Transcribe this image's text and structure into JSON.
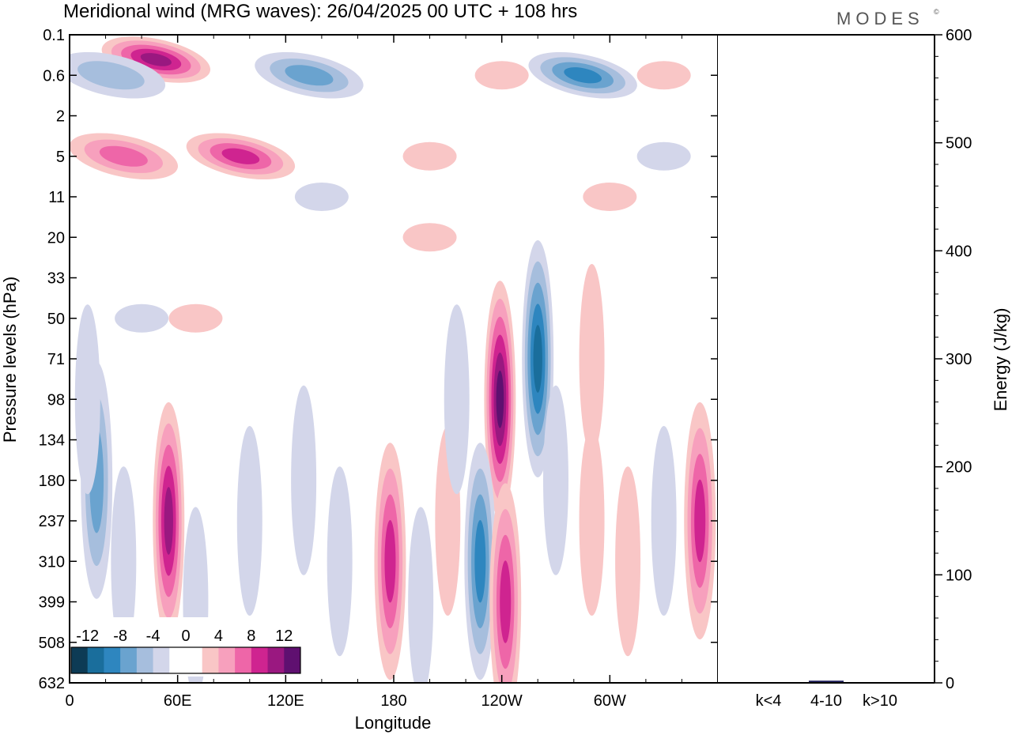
{
  "chart_data": [
    {
      "type": "heatmap",
      "title": "Meridional wind (MRG waves):  26/04/2025  00 UTC  + 108 hrs",
      "xlabel": "Longitude",
      "ylabel": "Pressure levels (hPa)",
      "x_ticks": [
        "0",
        "60E",
        "120E",
        "180",
        "120W",
        "60W"
      ],
      "x_tick_degrees": [
        0,
        60,
        120,
        180,
        240,
        300
      ],
      "x_range_degrees": [
        0,
        360
      ],
      "y_ticks": [
        "0.1",
        "0.6",
        "2",
        "5",
        "11",
        "20",
        "33",
        "50",
        "71",
        "98",
        "134",
        "180",
        "237",
        "310",
        "399",
        "508",
        "632"
      ],
      "y_axis_inverted": true,
      "colorbar": {
        "labels": [
          "-12",
          "-8",
          "-4",
          "0",
          "4",
          "8",
          "12"
        ],
        "colors": [
          "#0d3b55",
          "#1a6e9c",
          "#2e86bf",
          "#6aa3cf",
          "#a6bedd",
          "#d3d6ea",
          "#ffffff",
          "#ffffff",
          "#f9c6c6",
          "#f7a0bd",
          "#ee66a8",
          "#cf2490",
          "#9a1880",
          "#5f1070"
        ],
        "placement": "bottom-left"
      },
      "features": [
        {
          "lon": 48,
          "level": "0.3",
          "value": 11,
          "sign": "positive"
        },
        {
          "lon": 23,
          "level": "0.6",
          "value": -5,
          "sign": "negative"
        },
        {
          "lon": 133,
          "level": "0.6",
          "value": -7,
          "sign": "negative"
        },
        {
          "lon": 285,
          "level": "0.6",
          "value": -9,
          "sign": "negative"
        },
        {
          "lon": 95,
          "level": "5",
          "value": 8,
          "sign": "positive"
        },
        {
          "lon": 30,
          "level": "5",
          "value": 6,
          "sign": "positive"
        },
        {
          "lon": 260,
          "level": "71",
          "value": -10,
          "sign": "negative"
        },
        {
          "lon": 239,
          "level": "98",
          "value": 13,
          "sign": "positive"
        },
        {
          "lon": 55,
          "level": "237",
          "value": 10,
          "sign": "positive"
        },
        {
          "lon": 15,
          "level": "180",
          "value": -6,
          "sign": "negative"
        },
        {
          "lon": 178,
          "level": "310",
          "value": 8,
          "sign": "positive"
        },
        {
          "lon": 228,
          "level": "310",
          "value": -8,
          "sign": "negative"
        },
        {
          "lon": 242,
          "level": "399",
          "value": 8,
          "sign": "positive"
        },
        {
          "lon": 350,
          "level": "237",
          "value": 8,
          "sign": "positive"
        }
      ]
    },
    {
      "type": "bar",
      "ylabel": "Energy (J/kg)",
      "categories": [
        "k<4",
        "4-10",
        "k>10"
      ],
      "values": [
        0,
        2,
        0
      ],
      "ylim": [
        0,
        600
      ],
      "y_ticks": [
        "0",
        "100",
        "200",
        "300",
        "400",
        "500",
        "600"
      ],
      "bar_color": "#1c1c5a"
    }
  ],
  "brand": "MODES",
  "brand_mark": "©"
}
